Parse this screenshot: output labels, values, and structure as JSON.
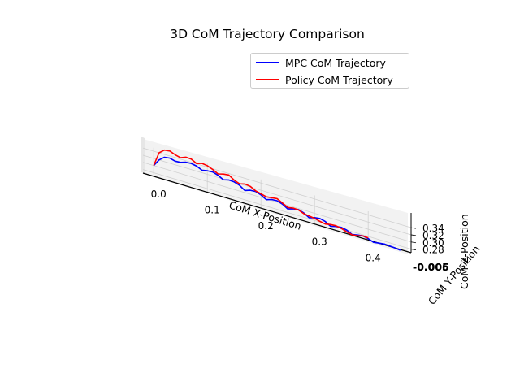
{
  "chart_data": {
    "type": "line",
    "projection": "3d",
    "title": "3D CoM Trajectory Comparison",
    "xlabel": "CoM X-Position",
    "ylabel": "CoM Y-Position",
    "zlabel": "CoM Z-Position",
    "xlim": [
      -0.02,
      0.48
    ],
    "zlim": [
      0.27,
      0.35
    ],
    "x_ticks": [
      "0.0",
      "0.1",
      "0.2",
      "0.3",
      "0.4"
    ],
    "y_ticks": [
      "-0.006",
      "-0.005"
    ],
    "z_ticks": [
      "0.28",
      "0.30",
      "0.32",
      "0.34"
    ],
    "grid": true,
    "legend_position": "upper-right",
    "series": [
      {
        "name": "MPC CoM Trajectory",
        "color": "#0000ff",
        "x": [
          0.0,
          0.01,
          0.02,
          0.03,
          0.04,
          0.05,
          0.06,
          0.07,
          0.08,
          0.09,
          0.1,
          0.11,
          0.12,
          0.13,
          0.14,
          0.15,
          0.16,
          0.17,
          0.18,
          0.19,
          0.2,
          0.21,
          0.22,
          0.23,
          0.24,
          0.25,
          0.26,
          0.27,
          0.28,
          0.29,
          0.3,
          0.31,
          0.32,
          0.33,
          0.34,
          0.35,
          0.36,
          0.37,
          0.38,
          0.39,
          0.4,
          0.41,
          0.42,
          0.43,
          0.44,
          0.45,
          0.46
        ],
        "z": [
          0.3,
          0.32,
          0.332,
          0.334,
          0.33,
          0.331,
          0.336,
          0.337,
          0.334,
          0.327,
          0.33,
          0.331,
          0.326,
          0.318,
          0.322,
          0.321,
          0.316,
          0.306,
          0.311,
          0.312,
          0.307,
          0.298,
          0.303,
          0.304,
          0.299,
          0.29,
          0.295,
          0.297,
          0.292,
          0.283,
          0.288,
          0.29,
          0.286,
          0.277,
          0.281,
          0.283,
          0.28,
          0.272,
          0.275,
          0.277,
          0.274,
          0.268,
          0.27,
          0.272,
          0.271,
          0.27,
          0.268
        ]
      },
      {
        "name": "Policy CoM Trajectory",
        "color": "#ff0000",
        "x": [
          0.0,
          0.01,
          0.02,
          0.03,
          0.04,
          0.05,
          0.06,
          0.07,
          0.08,
          0.09,
          0.1,
          0.11,
          0.12,
          0.13,
          0.14,
          0.15,
          0.16,
          0.17,
          0.18,
          0.19,
          0.2,
          0.21,
          0.22,
          0.23,
          0.24,
          0.25,
          0.26,
          0.27,
          0.28,
          0.29,
          0.3,
          0.31,
          0.32,
          0.33,
          0.34,
          0.35,
          0.36,
          0.37,
          0.38,
          0.39,
          0.4
        ],
        "z": [
          0.3,
          0.34,
          0.352,
          0.354,
          0.348,
          0.344,
          0.35,
          0.349,
          0.341,
          0.346,
          0.344,
          0.338,
          0.33,
          0.334,
          0.336,
          0.326,
          0.32,
          0.324,
          0.322,
          0.314,
          0.31,
          0.306,
          0.308,
          0.31,
          0.302,
          0.294,
          0.297,
          0.296,
          0.29,
          0.288,
          0.286,
          0.282,
          0.279,
          0.282,
          0.283,
          0.28,
          0.275,
          0.271,
          0.273,
          0.277,
          0.276
        ]
      }
    ]
  }
}
